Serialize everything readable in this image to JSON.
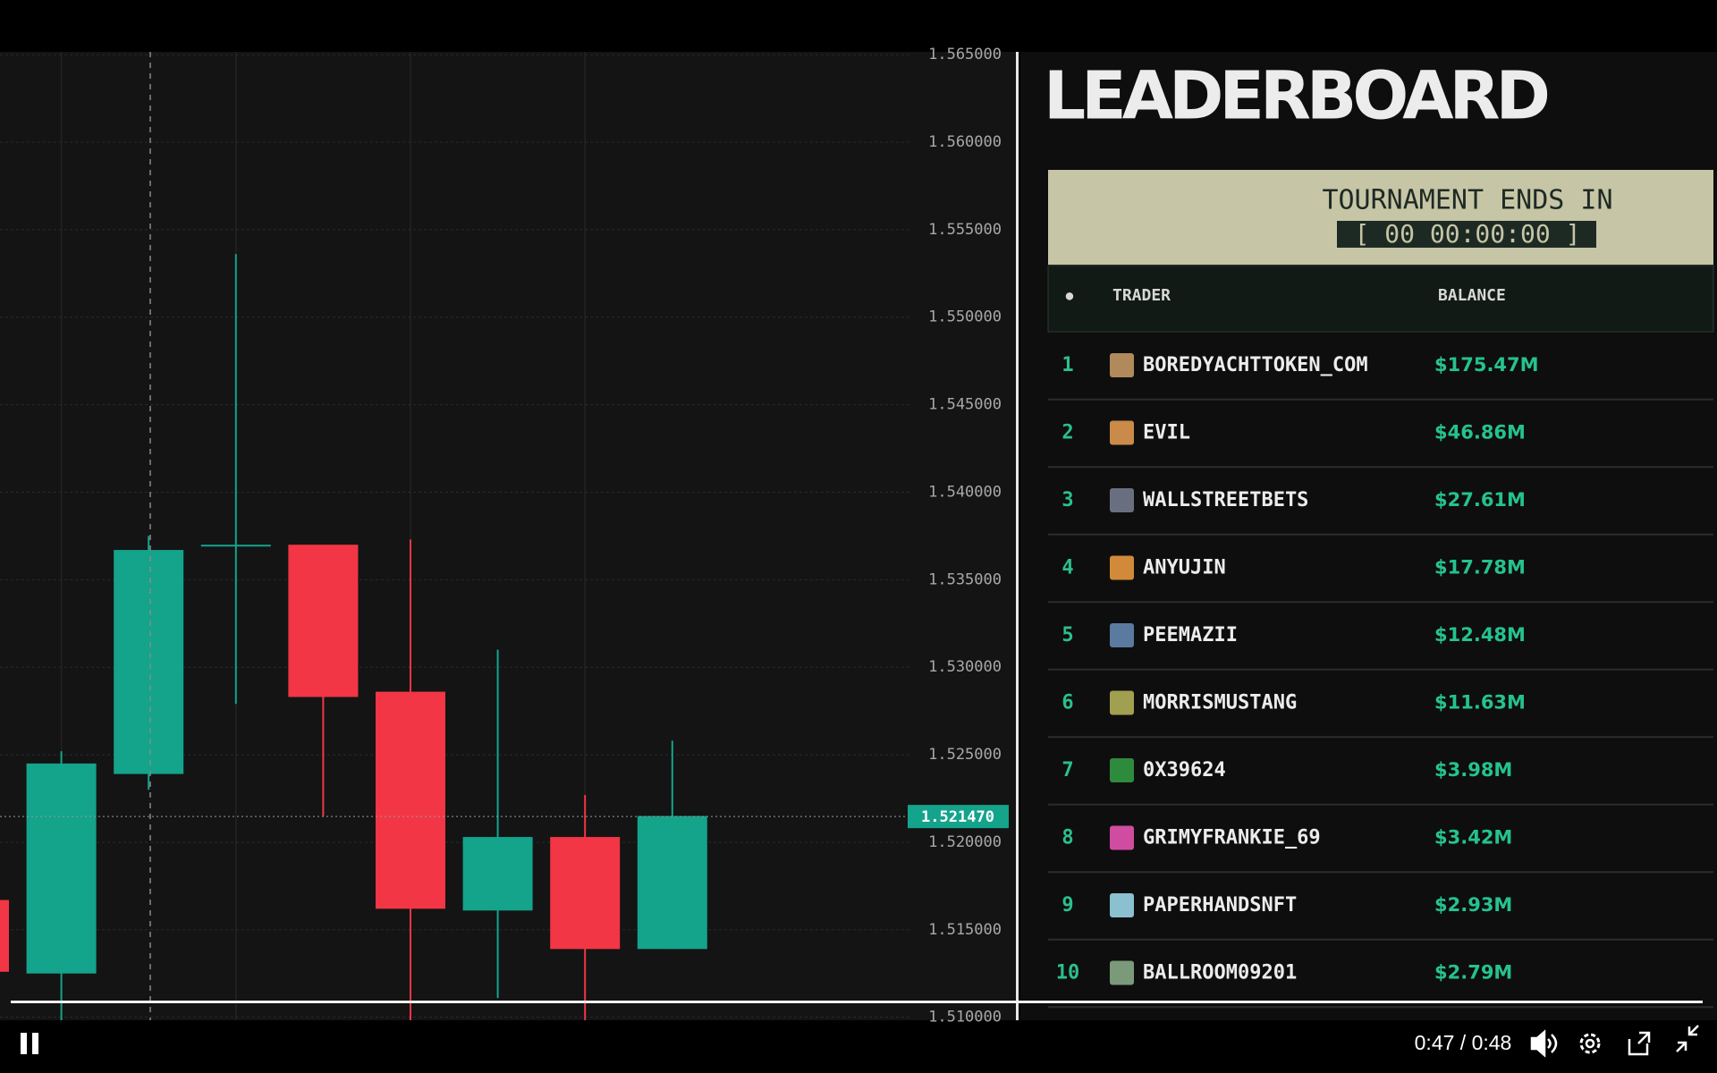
{
  "chart_data": {
    "type": "candlestick",
    "categories": [
      null,
      null,
      null,
      null,
      null,
      null,
      null,
      null,
      null
    ],
    "open": [
      1.5167,
      1.5125,
      1.5239,
      1.5369,
      1.537,
      1.5286,
      1.5161,
      1.5203,
      1.5139
    ],
    "high": [
      1.5167,
      1.5252,
      1.5375,
      1.5536,
      1.537,
      1.5373,
      1.531,
      1.5227,
      1.5258
    ],
    "low": [
      1.5126,
      1.5095,
      1.523,
      1.5279,
      1.5215,
      1.5095,
      1.5111,
      1.5095,
      1.5139
    ],
    "close": [
      1.5126,
      1.5245,
      1.5367,
      1.537,
      1.5283,
      1.5162,
      1.5203,
      1.5139,
      1.5215
    ],
    "up_color": "#14a38b",
    "down_color": "#f23645",
    "ylim": [
      1.50983,
      1.56516
    ],
    "yticks": [
      {
        "value": 1.51,
        "label": "1.510000"
      },
      {
        "value": 1.515,
        "label": "1.515000"
      },
      {
        "value": 1.52,
        "label": "1.520000"
      },
      {
        "value": 1.525,
        "label": "1.525000"
      },
      {
        "value": 1.53,
        "label": "1.530000"
      },
      {
        "value": 1.535,
        "label": "1.535000"
      },
      {
        "value": 1.54,
        "label": "1.540000"
      },
      {
        "value": 1.545,
        "label": "1.545000"
      },
      {
        "value": 1.55,
        "label": "1.550000"
      },
      {
        "value": 1.555,
        "label": "1.555000"
      },
      {
        "value": 1.56,
        "label": "1.560000"
      },
      {
        "value": 1.565,
        "label": "1.565000"
      }
    ],
    "grid": true,
    "last_price": {
      "value": 1.52147,
      "label": "1.521470"
    }
  },
  "leaderboard": {
    "title": "LEADERBOARD",
    "countdown": {
      "label": "TOURNAMENT ENDS IN",
      "timer": "[ 00 00:00:00 ]"
    },
    "headers": [
      "●",
      "TRADER",
      "BALANCE"
    ],
    "rows": [
      [
        1,
        "BOREDYACHTTOKEN_COM",
        "$175.47M"
      ],
      [
        2,
        "EVIL",
        "$46.86M"
      ],
      [
        3,
        "WALLSTREETBETS",
        "$27.61M"
      ],
      [
        4,
        "ANYUJIN",
        "$17.78M"
      ],
      [
        5,
        "PEEMAZII",
        "$12.48M"
      ],
      [
        6,
        "MORRISMUSTANG",
        "$11.63M"
      ],
      [
        7,
        "0X39624",
        "$3.98M"
      ],
      [
        8,
        "GRIMYFRANKIE_69",
        "$3.42M"
      ],
      [
        9,
        "PAPERHANDSNFT",
        "$2.93M"
      ],
      [
        10,
        "BALLROOM09201",
        "$2.79M"
      ]
    ]
  },
  "player": {
    "time": "0:47 / 0:48"
  }
}
